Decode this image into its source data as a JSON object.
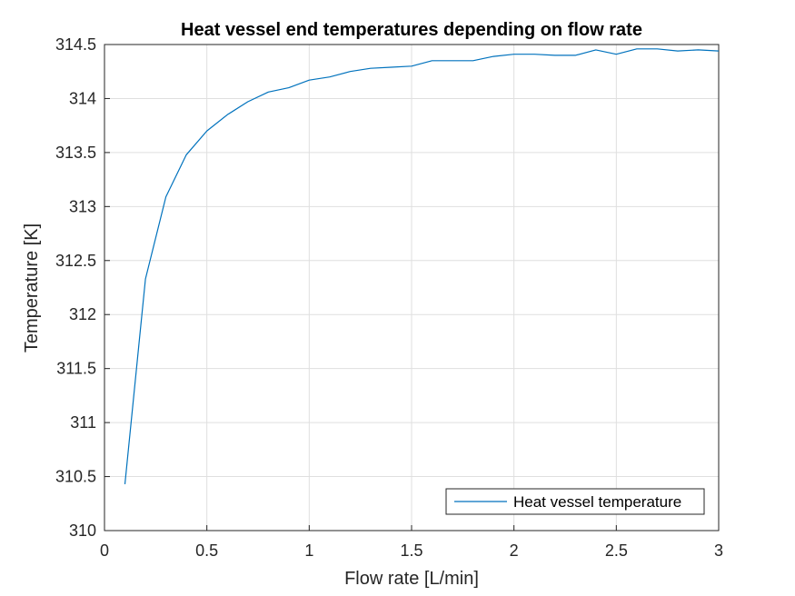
{
  "chart_data": {
    "type": "line",
    "title": "Heat vessel end temperatures depending on flow rate",
    "xlabel": "Flow rate [L/min]",
    "ylabel": "Temperature [K]",
    "xlim": [
      0,
      3
    ],
    "ylim": [
      310,
      314.5
    ],
    "xticks": [
      0,
      0.5,
      1,
      1.5,
      2,
      2.5,
      3
    ],
    "xtick_labels": [
      "0",
      "0.5",
      "1",
      "1.5",
      "2",
      "2.5",
      "3"
    ],
    "yticks": [
      310,
      310.5,
      311,
      311.5,
      312,
      312.5,
      313,
      313.5,
      314,
      314.5
    ],
    "ytick_labels": [
      "310",
      "310.5",
      "311",
      "311.5",
      "312",
      "312.5",
      "313",
      "313.5",
      "314",
      "314.5"
    ],
    "grid": true,
    "legend_position": "bottom-right",
    "series": [
      {
        "name": "Heat vessel temperature",
        "color": "#0072BD",
        "x": [
          0.1,
          0.2,
          0.3,
          0.4,
          0.5,
          0.6,
          0.7,
          0.8,
          0.9,
          1.0,
          1.1,
          1.2,
          1.3,
          1.4,
          1.5,
          1.6,
          1.7,
          1.8,
          1.9,
          2.0,
          2.1,
          2.2,
          2.3,
          2.4,
          2.5,
          2.6,
          2.7,
          2.8,
          2.9,
          3.0
        ],
        "y": [
          310.43,
          312.33,
          313.09,
          313.48,
          313.7,
          313.85,
          313.97,
          314.06,
          314.1,
          314.17,
          314.2,
          314.25,
          314.28,
          314.29,
          314.3,
          314.35,
          314.35,
          314.35,
          314.39,
          314.41,
          314.41,
          314.4,
          314.4,
          314.45,
          314.41,
          314.46,
          314.46,
          314.44,
          314.45,
          314.44
        ]
      }
    ]
  }
}
